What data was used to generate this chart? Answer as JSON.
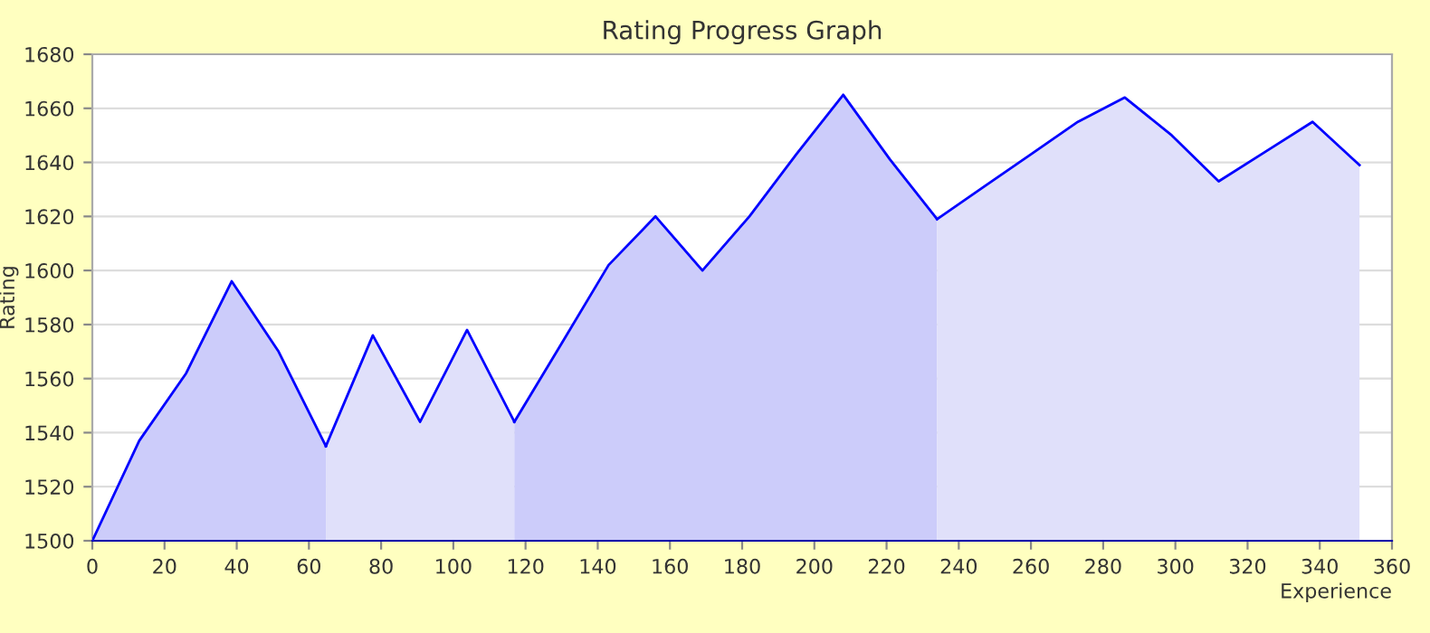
{
  "chart_data": {
    "type": "area",
    "title": "Rating Progress Graph",
    "xlabel": "Experience",
    "ylabel": "Rating",
    "series": [
      {
        "color": "#ccccfa",
        "x": [
          0,
          13,
          26,
          38.6,
          51.6,
          64.7
        ],
        "values": [
          1500,
          1537,
          1562,
          1596,
          1570,
          1535
        ]
      },
      {
        "color": "#e0e0fa",
        "x": [
          64.7,
          77.7,
          90.8,
          103.8,
          116.9
        ],
        "values": [
          1535,
          1576,
          1544,
          1578,
          1544
        ]
      },
      {
        "color": "#ccccfa",
        "x": [
          116.9,
          130,
          143,
          156,
          169,
          182,
          195,
          208,
          221,
          234
        ],
        "values": [
          1544,
          1573,
          1602,
          1620,
          1600,
          1620,
          1643,
          1665,
          1641,
          1619
        ]
      },
      {
        "color": "#e0e0fa",
        "x": [
          234,
          247,
          260,
          273,
          286,
          299,
          312,
          325,
          338,
          351
        ],
        "values": [
          1619,
          1631,
          1643,
          1655,
          1664,
          1650,
          1633,
          1644,
          1655,
          1639
        ]
      }
    ],
    "xlim": [
      0,
      360
    ],
    "xticks": [
      0,
      20,
      40,
      60,
      80,
      100,
      120,
      140,
      160,
      180,
      200,
      220,
      240,
      260,
      280,
      300,
      320,
      340,
      360
    ],
    "ylim": [
      1500,
      1680
    ],
    "yticks": [
      1500,
      1520,
      1540,
      1560,
      1580,
      1600,
      1620,
      1640,
      1660,
      1680
    ],
    "grid": "y"
  }
}
